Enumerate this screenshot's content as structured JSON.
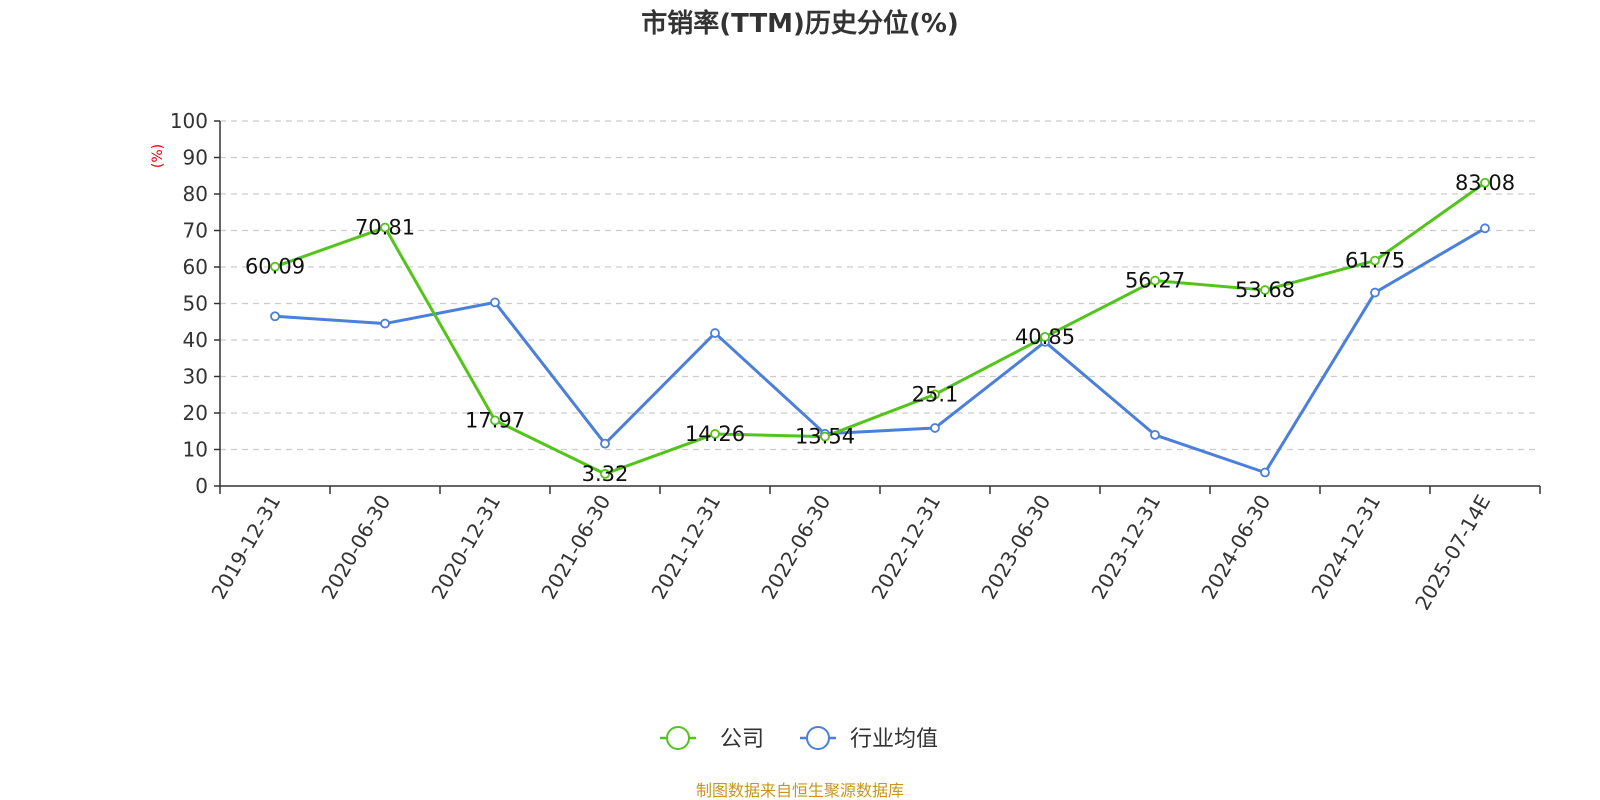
{
  "chart_data": {
    "type": "line",
    "title": "市销率(TTM)历史分位(%)",
    "ylabel": "(%)",
    "xlabel": "",
    "ylim": [
      0,
      100
    ],
    "yticks": [
      0,
      10,
      20,
      30,
      40,
      50,
      60,
      70,
      80,
      90,
      100
    ],
    "grid": true,
    "legend_position": "bottom",
    "categories": [
      "2019-12-31",
      "2020-06-30",
      "2020-12-31",
      "2021-06-30",
      "2021-12-31",
      "2022-06-30",
      "2022-12-31",
      "2023-06-30",
      "2023-12-31",
      "2024-06-30",
      "2024-12-31",
      "2025-07-14E"
    ],
    "series": [
      {
        "name": "公司",
        "color": "#52c41a",
        "show_labels": true,
        "values": [
          60.09,
          70.81,
          17.97,
          3.32,
          14.26,
          13.54,
          25.1,
          40.85,
          56.27,
          53.68,
          61.75,
          83.08
        ]
      },
      {
        "name": "行业均值",
        "color": "#4a7fdc",
        "show_labels": false,
        "values": [
          46.5,
          44.5,
          50.3,
          11.6,
          41.9,
          14.3,
          15.9,
          39.5,
          14.0,
          3.7,
          53.0,
          70.6
        ]
      }
    ],
    "source": "制图数据来自恒生聚源数据库"
  }
}
